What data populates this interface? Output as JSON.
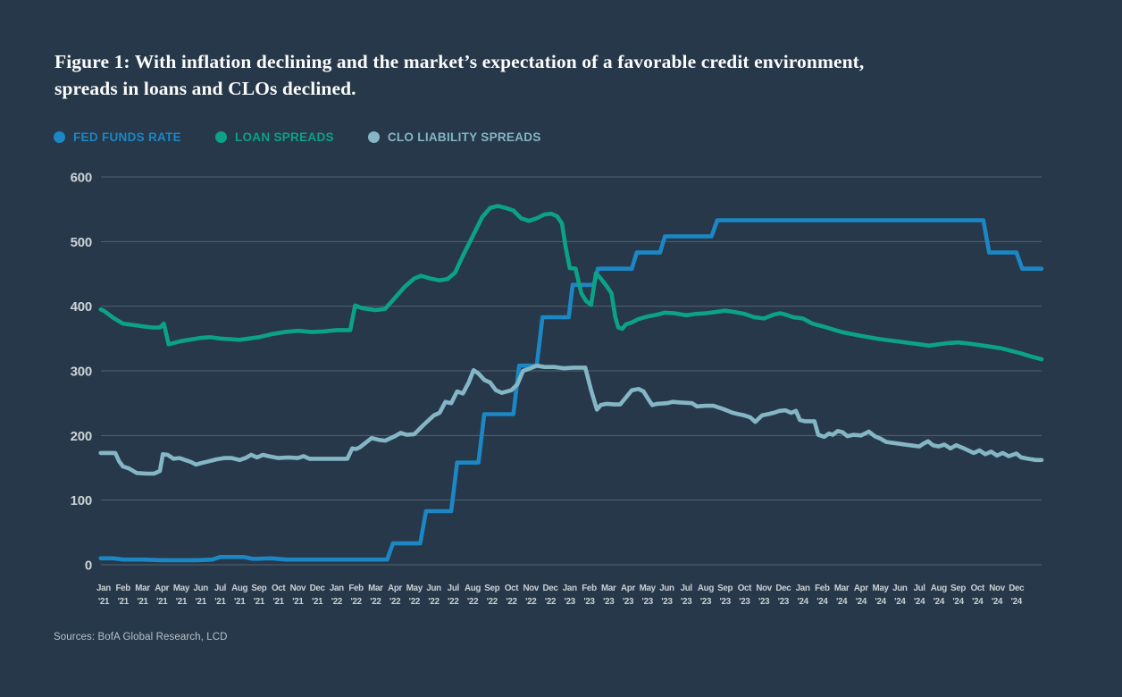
{
  "title_lines": [
    "Figure 1: With inflation declining and the market’s expectation of a favorable credit environment,",
    "spreads in loans and CLOs declined."
  ],
  "source": "Sources: BofA Global Research, LCD",
  "colors": {
    "background": "#263849",
    "grid": "#61707c",
    "axis_text": "#ccd3d8",
    "fed_funds": "#1c87c5",
    "loan_spreads": "#0ba287",
    "clo_spreads": "#84b6c5"
  },
  "legend": [
    {
      "label": "FED FUNDS RATE",
      "color": "#1c87c5"
    },
    {
      "label": "LOAN SPREADS",
      "color": "#0ba287"
    },
    {
      "label": "CLO LIABILITY SPREADS",
      "color": "#84b6c5"
    }
  ],
  "chart_data": {
    "type": "line",
    "title": "Fed funds rate vs loan spreads vs CLO liability spreads (bps)",
    "grid": "horizontal",
    "legend_position": "top-left",
    "y_axis": {
      "min": 0,
      "max": 600,
      "ticks": [
        0,
        100,
        200,
        300,
        400,
        500,
        600
      ]
    },
    "x_axis": {
      "note": "monthly, Jan 2021 through Dec 2024; x values in series are month indices where 0 = Jan 2021",
      "month_names": [
        "Jan",
        "Feb",
        "Mar",
        "Apr",
        "May",
        "Jun",
        "Jul",
        "Aug",
        "Sep",
        "Oct",
        "Nov",
        "Dec"
      ],
      "years": [
        "'21",
        "'22",
        "'23",
        "'24"
      ]
    },
    "series": [
      {
        "name": "FED FUNDS RATE",
        "color": "#1c87c5",
        "points": [
          [
            -0.15,
            10
          ],
          [
            0.5,
            10
          ],
          [
            1,
            8
          ],
          [
            2,
            8
          ],
          [
            3,
            7
          ],
          [
            4.8,
            7
          ],
          [
            5.6,
            8
          ],
          [
            6,
            12
          ],
          [
            7.2,
            12
          ],
          [
            7.7,
            9
          ],
          [
            8.6,
            10
          ],
          [
            9.4,
            8
          ],
          [
            14.6,
            8
          ],
          [
            14.9,
            33
          ],
          [
            16.3,
            33
          ],
          [
            16.6,
            83
          ],
          [
            17.9,
            83
          ],
          [
            18.2,
            158
          ],
          [
            19.3,
            158
          ],
          [
            19.6,
            233
          ],
          [
            21.1,
            233
          ],
          [
            21.4,
            308
          ],
          [
            22.3,
            308
          ],
          [
            22.6,
            383
          ],
          [
            23.95,
            383
          ],
          [
            24.15,
            433
          ],
          [
            25.25,
            433
          ],
          [
            25.45,
            458
          ],
          [
            27.2,
            458
          ],
          [
            27.45,
            483
          ],
          [
            28.65,
            483
          ],
          [
            28.9,
            508
          ],
          [
            31.3,
            508
          ],
          [
            31.6,
            533
          ],
          [
            45.3,
            533
          ],
          [
            45.6,
            483
          ],
          [
            47.0,
            483
          ],
          [
            47.3,
            458
          ],
          [
            48.3,
            458
          ]
        ]
      },
      {
        "name": "LOAN SPREADS",
        "color": "#0ba287",
        "points": [
          [
            -0.15,
            395
          ],
          [
            0,
            393
          ],
          [
            0.5,
            382
          ],
          [
            1,
            373
          ],
          [
            1.5,
            371
          ],
          [
            2,
            369
          ],
          [
            2.5,
            367
          ],
          [
            2.9,
            367
          ],
          [
            3.1,
            373
          ],
          [
            3.35,
            341
          ],
          [
            4,
            346
          ],
          [
            5,
            351
          ],
          [
            5.5,
            352
          ],
          [
            6,
            350
          ],
          [
            6.5,
            349
          ],
          [
            7,
            348
          ],
          [
            7.5,
            350
          ],
          [
            8,
            352
          ],
          [
            8.7,
            357
          ],
          [
            9.3,
            360
          ],
          [
            10,
            362
          ],
          [
            10.7,
            360
          ],
          [
            11.3,
            361
          ],
          [
            12,
            363
          ],
          [
            12.7,
            363
          ],
          [
            12.95,
            401
          ],
          [
            13.3,
            397
          ],
          [
            14,
            394
          ],
          [
            14.5,
            396
          ],
          [
            15,
            413
          ],
          [
            15.5,
            430
          ],
          [
            16,
            443
          ],
          [
            16.35,
            447
          ],
          [
            16.8,
            443
          ],
          [
            17.3,
            440
          ],
          [
            17.7,
            442
          ],
          [
            18.1,
            452
          ],
          [
            18.5,
            478
          ],
          [
            19,
            508
          ],
          [
            19.5,
            538
          ],
          [
            19.9,
            552
          ],
          [
            20.3,
            555
          ],
          [
            20.7,
            552
          ],
          [
            21.1,
            548
          ],
          [
            21.5,
            536
          ],
          [
            21.9,
            532
          ],
          [
            22.3,
            536
          ],
          [
            22.7,
            542
          ],
          [
            23.05,
            543
          ],
          [
            23.35,
            539
          ],
          [
            23.6,
            528
          ],
          [
            23.8,
            490
          ],
          [
            24.0,
            459
          ],
          [
            24.3,
            458
          ],
          [
            24.6,
            420
          ],
          [
            24.85,
            408
          ],
          [
            25.1,
            402
          ],
          [
            25.35,
            451
          ],
          [
            25.6,
            443
          ],
          [
            25.9,
            431
          ],
          [
            26.15,
            420
          ],
          [
            26.35,
            383
          ],
          [
            26.5,
            367
          ],
          [
            26.7,
            365
          ],
          [
            26.9,
            372
          ],
          [
            27.2,
            375
          ],
          [
            27.55,
            380
          ],
          [
            28,
            384
          ],
          [
            28.5,
            387
          ],
          [
            28.9,
            390
          ],
          [
            29.4,
            389
          ],
          [
            30,
            386
          ],
          [
            30.5,
            388
          ],
          [
            31,
            389
          ],
          [
            31.5,
            391
          ],
          [
            32,
            393
          ],
          [
            32.5,
            391
          ],
          [
            33,
            388
          ],
          [
            33.5,
            383
          ],
          [
            34,
            381
          ],
          [
            34.5,
            387
          ],
          [
            34.8,
            389
          ],
          [
            35,
            388
          ],
          [
            35.5,
            383
          ],
          [
            36,
            381
          ],
          [
            36.5,
            373
          ],
          [
            37,
            369
          ],
          [
            38,
            360
          ],
          [
            39,
            354
          ],
          [
            40,
            349
          ],
          [
            41,
            345
          ],
          [
            42,
            341
          ],
          [
            42.5,
            339
          ],
          [
            43,
            341
          ],
          [
            43.5,
            343
          ],
          [
            44,
            344
          ],
          [
            44.6,
            342
          ],
          [
            45.3,
            339
          ],
          [
            46.2,
            335
          ],
          [
            47.1,
            328
          ],
          [
            47.9,
            321
          ],
          [
            48.3,
            318
          ]
        ]
      },
      {
        "name": "CLO LIABILITY SPREADS",
        "color": "#84b6c5",
        "points": [
          [
            -0.15,
            173
          ],
          [
            0.6,
            173
          ],
          [
            0.8,
            160
          ],
          [
            1,
            152
          ],
          [
            1.3,
            149
          ],
          [
            1.7,
            142
          ],
          [
            2.2,
            141
          ],
          [
            2.6,
            141
          ],
          [
            2.9,
            145
          ],
          [
            3.05,
            171
          ],
          [
            3.3,
            170
          ],
          [
            3.6,
            164
          ],
          [
            3.9,
            165
          ],
          [
            4.2,
            162
          ],
          [
            4.5,
            159
          ],
          [
            4.75,
            155
          ],
          [
            5,
            157
          ],
          [
            5.4,
            160
          ],
          [
            5.8,
            163
          ],
          [
            6.2,
            165
          ],
          [
            6.6,
            165
          ],
          [
            7,
            162
          ],
          [
            7.3,
            165
          ],
          [
            7.6,
            170
          ],
          [
            7.9,
            166
          ],
          [
            8.2,
            170
          ],
          [
            8.5,
            168
          ],
          [
            9,
            165
          ],
          [
            9.5,
            166
          ],
          [
            10,
            165
          ],
          [
            10.3,
            168
          ],
          [
            10.6,
            164
          ],
          [
            11,
            164
          ],
          [
            12,
            164
          ],
          [
            12.55,
            164
          ],
          [
            12.8,
            180
          ],
          [
            13,
            179
          ],
          [
            13.2,
            182
          ],
          [
            13.8,
            196
          ],
          [
            14.2,
            193
          ],
          [
            14.5,
            192
          ],
          [
            15,
            199
          ],
          [
            15.3,
            204
          ],
          [
            15.6,
            201
          ],
          [
            16,
            202
          ],
          [
            16.5,
            217
          ],
          [
            17,
            231
          ],
          [
            17.3,
            235
          ],
          [
            17.6,
            252
          ],
          [
            17.9,
            250
          ],
          [
            18.2,
            268
          ],
          [
            18.5,
            265
          ],
          [
            18.8,
            282
          ],
          [
            19.05,
            301
          ],
          [
            19.3,
            296
          ],
          [
            19.6,
            286
          ],
          [
            19.9,
            282
          ],
          [
            20.2,
            270
          ],
          [
            20.5,
            266
          ],
          [
            21,
            270
          ],
          [
            21.3,
            279
          ],
          [
            21.6,
            300
          ],
          [
            21.9,
            303
          ],
          [
            22.3,
            308
          ],
          [
            22.7,
            306
          ],
          [
            23.2,
            306
          ],
          [
            23.7,
            304
          ],
          [
            24.2,
            305
          ],
          [
            24.8,
            305
          ],
          [
            25.1,
            270
          ],
          [
            25.4,
            240
          ],
          [
            25.6,
            247
          ],
          [
            25.9,
            249
          ],
          [
            26.3,
            248
          ],
          [
            26.6,
            248
          ],
          [
            26.9,
            259
          ],
          [
            27.2,
            270
          ],
          [
            27.55,
            272
          ],
          [
            27.8,
            268
          ],
          [
            28.05,
            256
          ],
          [
            28.25,
            247
          ],
          [
            28.5,
            249
          ],
          [
            29,
            250
          ],
          [
            29.3,
            252
          ],
          [
            29.7,
            251
          ],
          [
            30.3,
            250
          ],
          [
            30.55,
            245
          ],
          [
            31,
            246
          ],
          [
            31.4,
            246
          ],
          [
            31.9,
            241
          ],
          [
            32.4,
            235
          ],
          [
            32.7,
            233
          ],
          [
            33,
            231
          ],
          [
            33.3,
            228
          ],
          [
            33.55,
            221
          ],
          [
            33.9,
            231
          ],
          [
            34.2,
            233
          ],
          [
            34.5,
            235
          ],
          [
            34.8,
            238
          ],
          [
            35.1,
            239
          ],
          [
            35.4,
            235
          ],
          [
            35.65,
            238
          ],
          [
            35.85,
            224
          ],
          [
            36.1,
            222
          ],
          [
            36.6,
            222
          ],
          [
            36.8,
            201
          ],
          [
            37.1,
            198
          ],
          [
            37.35,
            203
          ],
          [
            37.55,
            201
          ],
          [
            37.8,
            207
          ],
          [
            38.05,
            205
          ],
          [
            38.3,
            199
          ],
          [
            38.6,
            201
          ],
          [
            39,
            200
          ],
          [
            39.4,
            206
          ],
          [
            39.7,
            199
          ],
          [
            40,
            195
          ],
          [
            40.3,
            190
          ],
          [
            41,
            187
          ],
          [
            41.5,
            185
          ],
          [
            42,
            183
          ],
          [
            42.2,
            187
          ],
          [
            42.45,
            191
          ],
          [
            42.7,
            185
          ],
          [
            43,
            183
          ],
          [
            43.3,
            186
          ],
          [
            43.6,
            180
          ],
          [
            43.9,
            185
          ],
          [
            44.3,
            180
          ],
          [
            44.8,
            173
          ],
          [
            45.1,
            177
          ],
          [
            45.4,
            171
          ],
          [
            45.7,
            175
          ],
          [
            46.0,
            169
          ],
          [
            46.3,
            173
          ],
          [
            46.6,
            168
          ],
          [
            47.0,
            172
          ],
          [
            47.25,
            166
          ],
          [
            47.6,
            164
          ],
          [
            48.0,
            162
          ],
          [
            48.3,
            162
          ]
        ]
      }
    ]
  }
}
